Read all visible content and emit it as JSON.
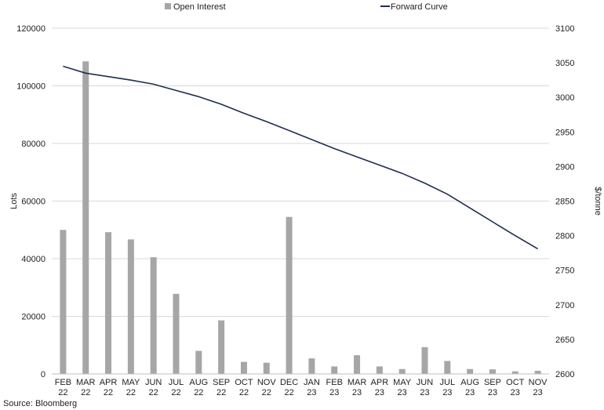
{
  "chart_data": {
    "type": "bar+line",
    "categories": [
      [
        "FEB",
        "22"
      ],
      [
        "MAR",
        "22"
      ],
      [
        "APR",
        "22"
      ],
      [
        "MAY",
        "22"
      ],
      [
        "JUN",
        "22"
      ],
      [
        "JUL",
        "22"
      ],
      [
        "AUG",
        "22"
      ],
      [
        "SEP",
        "22"
      ],
      [
        "OCT",
        "22"
      ],
      [
        "NOV",
        "22"
      ],
      [
        "DEC",
        "22"
      ],
      [
        "JAN",
        "23"
      ],
      [
        "FEB",
        "23"
      ],
      [
        "MAR",
        "23"
      ],
      [
        "APR",
        "23"
      ],
      [
        "MAY",
        "23"
      ],
      [
        "JUN",
        "23"
      ],
      [
        "JUL",
        "23"
      ],
      [
        "AUG",
        "23"
      ],
      [
        "SEP",
        "23"
      ],
      [
        "OCT",
        "23"
      ],
      [
        "NOV",
        "23"
      ]
    ],
    "series": [
      {
        "name": "Open Interest",
        "type": "bar",
        "axis": "left",
        "color": "#a6a6a6",
        "values": [
          50000,
          108500,
          49200,
          46700,
          40500,
          27800,
          8000,
          18600,
          4200,
          3900,
          54500,
          5400,
          2600,
          6500,
          2600,
          1700,
          9300,
          4500,
          1700,
          1600,
          900,
          1100
        ]
      },
      {
        "name": "Forward Curve",
        "type": "line",
        "axis": "right",
        "color": "#1f2d4f",
        "values": [
          3045,
          3035,
          3030,
          3025,
          3019,
          3010,
          3001,
          2990,
          2977,
          2965,
          2952,
          2939,
          2926,
          2914,
          2902,
          2890,
          2876,
          2860,
          2840,
          2820,
          2800,
          2781
        ]
      }
    ],
    "left_axis": {
      "label": "Lots",
      "min": 0,
      "max": 120000,
      "step": 20000
    },
    "right_axis": {
      "label": "$/tonne",
      "min": 2600,
      "max": 3100,
      "step": 50
    },
    "grid": true,
    "legend_position": "top"
  },
  "source_note": "Source: Bloomberg"
}
